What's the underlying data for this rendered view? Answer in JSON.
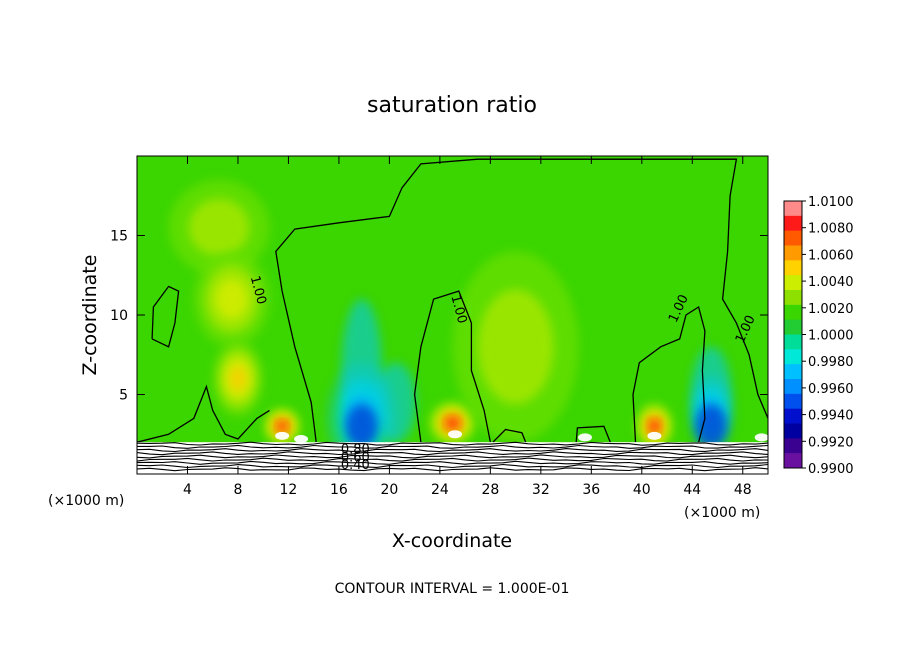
{
  "chart_data": {
    "type": "heatmap",
    "title": "saturation ratio",
    "xlabel": "X-coordinate",
    "ylabel": "Z-coordinate",
    "x_units_left": "(×1000 m)",
    "x_units_right": "(×1000 m)",
    "xlim": [
      0,
      50
    ],
    "ylim": [
      0,
      20
    ],
    "xticks": [
      4,
      8,
      12,
      16,
      20,
      24,
      28,
      32,
      36,
      40,
      44,
      48
    ],
    "yticks": [
      5,
      10,
      15
    ],
    "footnote": "CONTOUR INTERVAL = 1.000E-01",
    "colorbar": {
      "ticks": [
        "1.0100",
        "1.0080",
        "1.0060",
        "1.0040",
        "1.0020",
        "1.0000",
        "0.9980",
        "0.9960",
        "0.9940",
        "0.9920",
        "0.9900"
      ],
      "colors": [
        "#ff8a8a",
        "#ff1a1a",
        "#ff5a00",
        "#ff9a00",
        "#ffd200",
        "#ccee00",
        "#8ee000",
        "#3bd500",
        "#22cc33",
        "#00dd99",
        "#00e8d8",
        "#00c0ff",
        "#0090ff",
        "#0050ee",
        "#0010cc",
        "#0000a0",
        "#3a0090",
        "#6a10a0"
      ],
      "background": "#3bd500"
    },
    "contour_labels": [
      {
        "text": "1.00",
        "x": 9.3,
        "z": 11.5
      },
      {
        "text": "1.00",
        "x": 25.2,
        "z": 10.3
      },
      {
        "text": "1.00",
        "x": 43.2,
        "z": 10.3
      },
      {
        "text": "1.00",
        "x": 48.5,
        "z": 9.0
      },
      {
        "text": "0.80",
        "x": 17.3,
        "z": 1.3
      },
      {
        "text": "0.60",
        "x": 17.3,
        "z": 0.8
      },
      {
        "text": "0.40",
        "x": 17.3,
        "z": 0.3
      }
    ],
    "blobs": [
      {
        "x": 6.5,
        "z": 15.5,
        "rx": 4.0,
        "rz": 3.0,
        "level": 1
      },
      {
        "x": 7.5,
        "z": 11.0,
        "rx": 3.0,
        "rz": 3.0,
        "level": 2
      },
      {
        "x": 8.0,
        "z": 6.0,
        "rx": 2.0,
        "rz": 2.4,
        "level": 3
      },
      {
        "x": 11.5,
        "z": 3.0,
        "rx": 1.5,
        "rz": 1.2,
        "level": 5
      },
      {
        "x": 25.0,
        "z": 3.2,
        "rx": 1.9,
        "rz": 1.4,
        "level": 5
      },
      {
        "x": 41.0,
        "z": 3.0,
        "rx": 1.5,
        "rz": 1.5,
        "level": 5
      },
      {
        "x": 17.8,
        "z": 3.5,
        "rx": 2.8,
        "rz": 3.5,
        "level": -2
      },
      {
        "x": 30.0,
        "z": 8.0,
        "rx": 5.0,
        "rz": 6.0,
        "level": 1
      },
      {
        "x": 45.5,
        "z": 3.8,
        "rx": 1.8,
        "rz": 2.5,
        "level": -2
      }
    ]
  }
}
